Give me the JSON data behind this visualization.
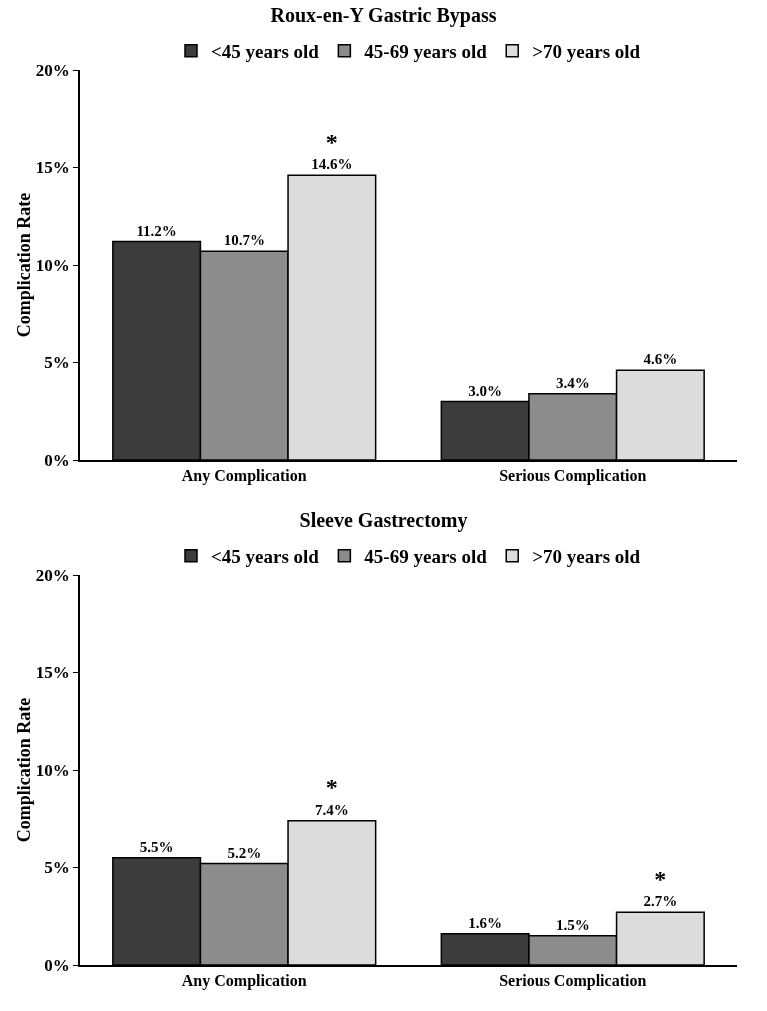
{
  "chart_data": [
    {
      "type": "bar",
      "title": "Roux-en-Y Gastric Bypass",
      "ylabel": "Complication Rate",
      "categories": [
        "Any Complication",
        "Serious Complication"
      ],
      "series": [
        {
          "name": "<45 years old",
          "color": "#3c3c3c",
          "values": [
            11.2,
            3.0
          ],
          "value_labels": [
            "11.2%",
            "3.0%"
          ]
        },
        {
          "name": "45-69 years old",
          "color": "#8c8c8c",
          "values": [
            10.7,
            3.4
          ],
          "value_labels": [
            "10.7%",
            "3.4%"
          ]
        },
        {
          "name": ">70 years old",
          "color": "#dcdcdc",
          "values": [
            14.6,
            4.6
          ],
          "value_labels": [
            "*\n14.6%",
            "4.6%"
          ]
        }
      ],
      "ylim": [
        0,
        20
      ],
      "yticks": [
        {
          "value": 0,
          "label": "0%"
        },
        {
          "value": 5,
          "label": "5%"
        },
        {
          "value": 10,
          "label": "10%"
        },
        {
          "value": 15,
          "label": "15%"
        },
        {
          "value": 20,
          "label": "20%"
        }
      ],
      "grid": false,
      "legend": "top"
    },
    {
      "type": "bar",
      "title": "Sleeve Gastrectomy",
      "ylabel": "Complication Rate",
      "categories": [
        "Any Complication",
        "Serious Complication"
      ],
      "series": [
        {
          "name": "<45 years old",
          "color": "#3c3c3c",
          "values": [
            5.5,
            1.6
          ],
          "value_labels": [
            "5.5%",
            "1.6%"
          ]
        },
        {
          "name": "45-69 years old",
          "color": "#8c8c8c",
          "values": [
            5.2,
            1.5
          ],
          "value_labels": [
            "5.2%",
            "1.5%"
          ]
        },
        {
          "name": ">70 years old",
          "color": "#dcdcdc",
          "values": [
            7.4,
            2.7
          ],
          "value_labels": [
            "*\n7.4%",
            "*\n2.7%"
          ]
        }
      ],
      "ylim": [
        0,
        20
      ],
      "yticks": [
        {
          "value": 0,
          "label": "0%"
        },
        {
          "value": 5,
          "label": "5%"
        },
        {
          "value": 10,
          "label": "10%"
        },
        {
          "value": 15,
          "label": "15%"
        },
        {
          "value": 20,
          "label": "20%"
        }
      ],
      "grid": false,
      "legend": "top"
    }
  ]
}
